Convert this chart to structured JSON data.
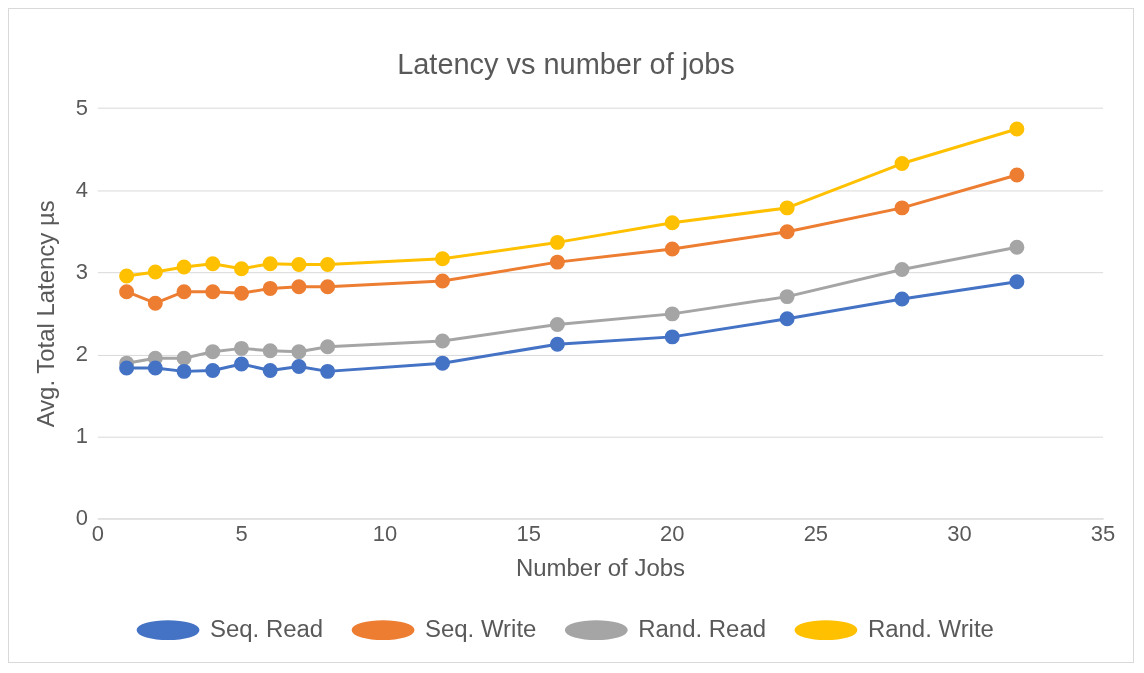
{
  "chart_data": {
    "type": "line",
    "title": "Latency vs number of jobs",
    "xlabel": "Number of Jobs",
    "ylabel": "Avg. Total Latency µs",
    "x": [
      1,
      2,
      3,
      4,
      5,
      6,
      7,
      8,
      12,
      16,
      20,
      24,
      28,
      32
    ],
    "series": [
      {
        "name": "Seq. Read",
        "color": "#4472c4",
        "values": [
          1.84,
          1.84,
          1.8,
          1.81,
          1.89,
          1.81,
          1.86,
          1.8,
          1.9,
          2.13,
          2.22,
          2.44,
          2.68,
          2.89
        ]
      },
      {
        "name": "Seq. Write",
        "color": "#ed7d31",
        "values": [
          2.77,
          2.63,
          2.77,
          2.77,
          2.75,
          2.81,
          2.83,
          2.83,
          2.9,
          3.13,
          3.29,
          3.5,
          3.79,
          4.19
        ]
      },
      {
        "name": "Rand. Read",
        "color": "#a5a5a5",
        "values": [
          1.9,
          1.96,
          1.96,
          2.04,
          2.08,
          2.05,
          2.04,
          2.1,
          2.17,
          2.37,
          2.5,
          2.71,
          3.04,
          3.31
        ]
      },
      {
        "name": "Rand. Write",
        "color": "#ffc000",
        "values": [
          2.96,
          3.01,
          3.07,
          3.11,
          3.05,
          3.11,
          3.1,
          3.1,
          3.17,
          3.37,
          3.61,
          3.79,
          4.33,
          4.75
        ]
      }
    ],
    "xlim": [
      0,
      35
    ],
    "xticks": [
      0,
      5,
      10,
      15,
      20,
      25,
      30,
      35
    ],
    "ylim": [
      0,
      5
    ],
    "yticks": [
      0,
      1,
      2,
      3,
      4,
      5
    ],
    "grid": "y",
    "legend": "bottom",
    "marker": "circle",
    "line_style": "solid"
  }
}
